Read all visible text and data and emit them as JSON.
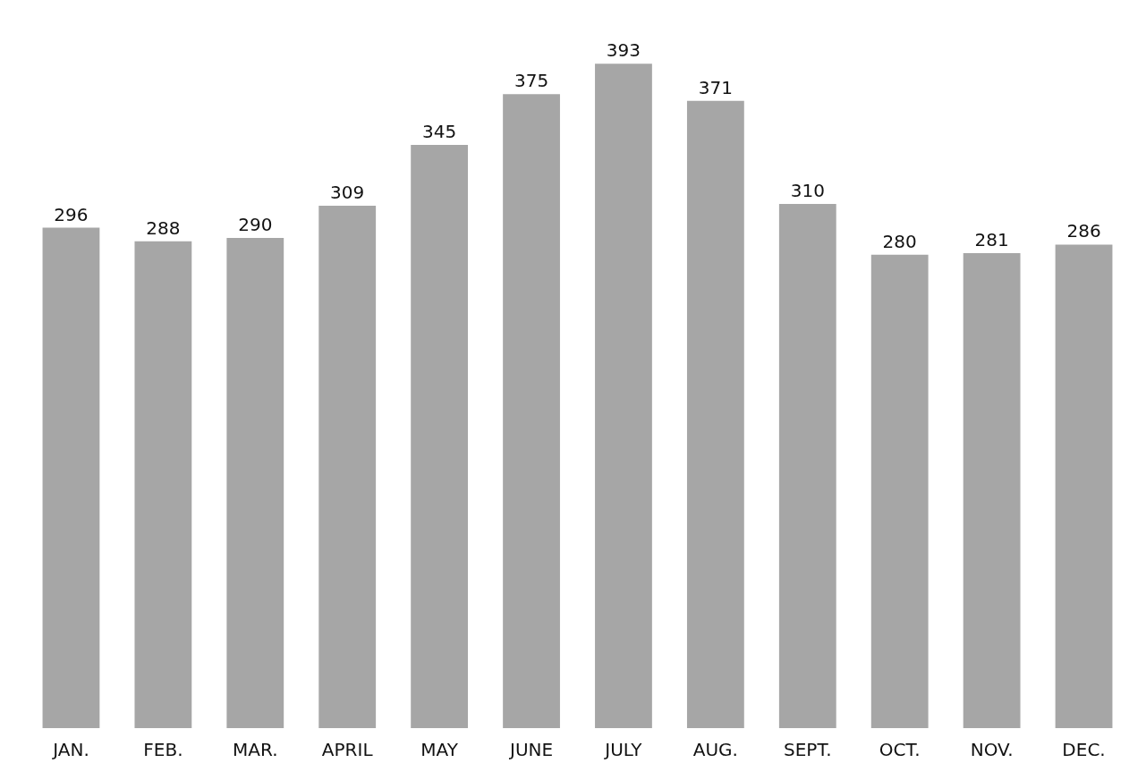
{
  "chart_data": {
    "type": "bar",
    "categories": [
      "JAN.",
      "FEB.",
      "MAR.",
      "APRIL",
      "MAY",
      "JUNE",
      "JULY",
      "AUG.",
      "SEPT.",
      "OCT.",
      "NOV.",
      "DEC."
    ],
    "values": [
      296,
      288,
      290,
      309,
      345,
      375,
      393,
      371,
      310,
      280,
      281,
      286
    ],
    "color": "#a6a6a6",
    "data_labels": true
  }
}
